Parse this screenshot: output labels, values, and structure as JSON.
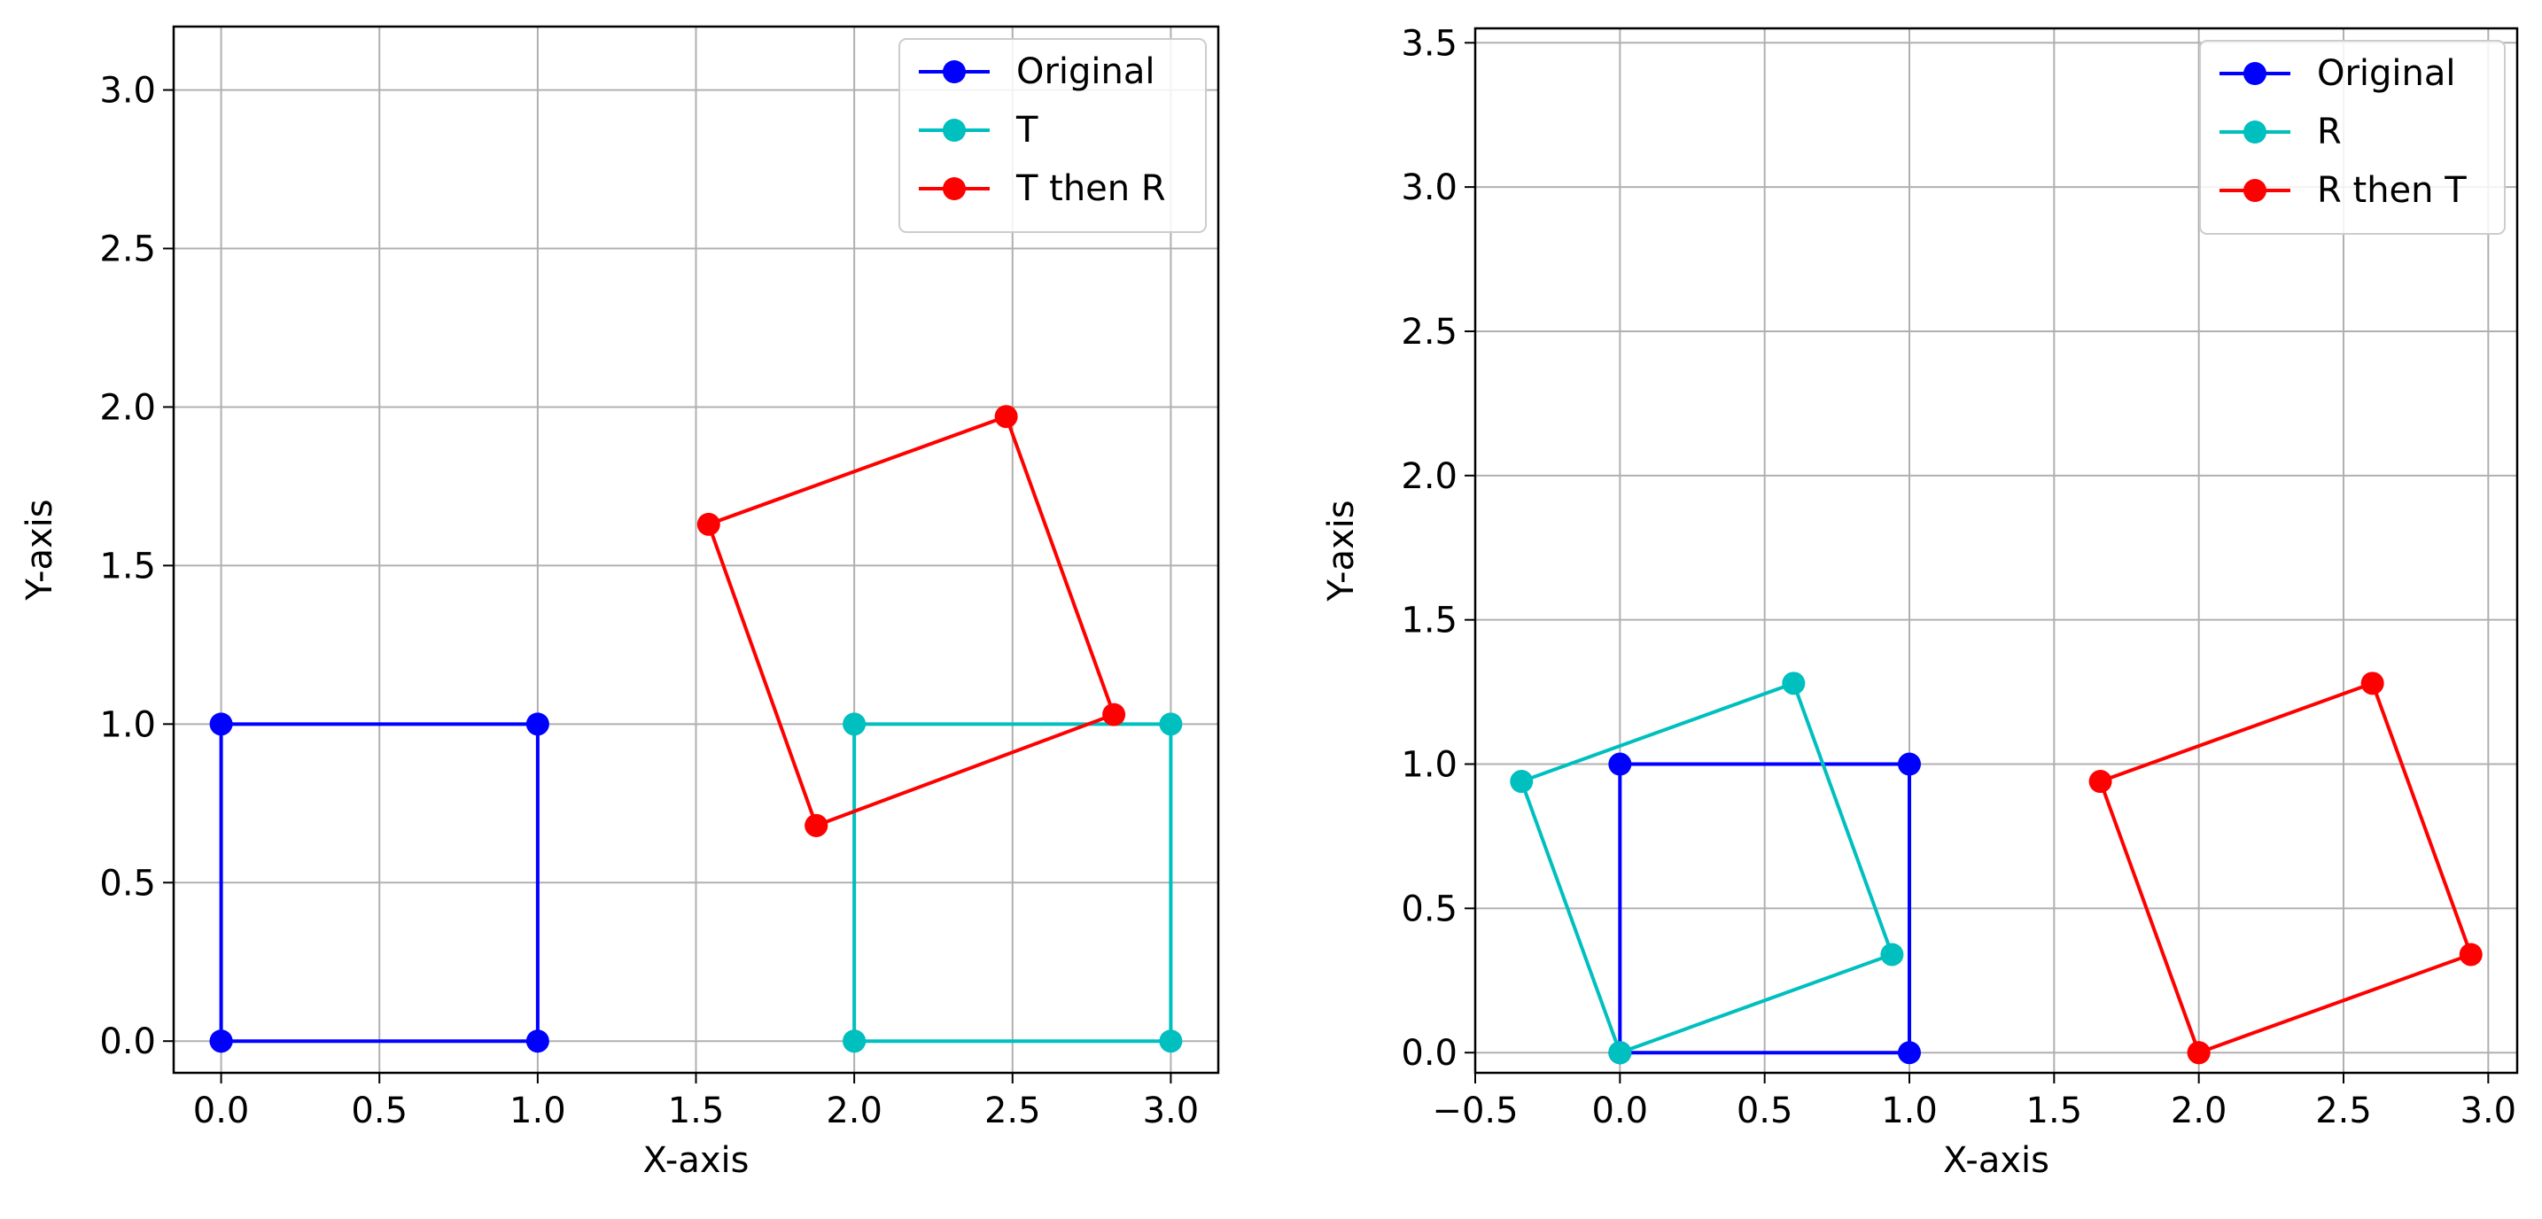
{
  "chart_data": [
    {
      "type": "line",
      "xlabel": "X-axis",
      "ylabel": "Y-axis",
      "xlim": [
        -0.15,
        3.15
      ],
      "ylim": [
        -0.1,
        3.2
      ],
      "xticks": [
        0.0,
        0.5,
        1.0,
        1.5,
        2.0,
        2.5,
        3.0
      ],
      "xtick_labels": [
        "0.0",
        "0.5",
        "1.0",
        "1.5",
        "2.0",
        "2.5",
        "3.0"
      ],
      "yticks": [
        0.0,
        0.5,
        1.0,
        1.5,
        2.0,
        2.5,
        3.0
      ],
      "ytick_labels": [
        "0.0",
        "0.5",
        "1.0",
        "1.5",
        "2.0",
        "2.5",
        "3.0"
      ],
      "grid": true,
      "legend_position": "top-right",
      "series": [
        {
          "name": "Original",
          "color": "#0000ff",
          "x": [
            0,
            1,
            1,
            0,
            0
          ],
          "y": [
            0,
            0,
            1,
            1,
            0
          ]
        },
        {
          "name": "T",
          "color": "#00bfbf",
          "x": [
            2,
            3,
            3,
            2,
            2
          ],
          "y": [
            0,
            0,
            1,
            1,
            0
          ]
        },
        {
          "name": "T then R",
          "color": "#ff0000",
          "x": [
            1.88,
            2.82,
            2.48,
            1.54,
            1.88
          ],
          "y": [
            0.68,
            1.03,
            1.97,
            1.63,
            0.68
          ]
        }
      ]
    },
    {
      "type": "line",
      "xlabel": "X-axis",
      "ylabel": "Y-axis",
      "xlim": [
        -0.5,
        3.1
      ],
      "ylim": [
        -0.07,
        3.55
      ],
      "xticks": [
        -0.5,
        0.0,
        0.5,
        1.0,
        1.5,
        2.0,
        2.5,
        3.0
      ],
      "xtick_labels": [
        "−0.5",
        "0.0",
        "0.5",
        "1.0",
        "1.5",
        "2.0",
        "2.5",
        "3.0"
      ],
      "yticks": [
        0.0,
        0.5,
        1.0,
        1.5,
        2.0,
        2.5,
        3.0,
        3.5
      ],
      "ytick_labels": [
        "0.0",
        "0.5",
        "1.0",
        "1.5",
        "2.0",
        "2.5",
        "3.0",
        "3.5"
      ],
      "grid": true,
      "legend_position": "top-right",
      "series": [
        {
          "name": "Original",
          "color": "#0000ff",
          "x": [
            0,
            1,
            1,
            0,
            0
          ],
          "y": [
            0,
            0,
            1,
            1,
            0
          ]
        },
        {
          "name": "R",
          "color": "#00bfbf",
          "x": [
            0,
            0.94,
            0.6,
            -0.34,
            0
          ],
          "y": [
            0,
            0.34,
            1.28,
            0.94,
            0
          ]
        },
        {
          "name": "R then T",
          "color": "#ff0000",
          "x": [
            2,
            2.94,
            2.6,
            1.66,
            2
          ],
          "y": [
            0,
            0.34,
            1.28,
            0.94,
            0
          ]
        }
      ]
    }
  ]
}
